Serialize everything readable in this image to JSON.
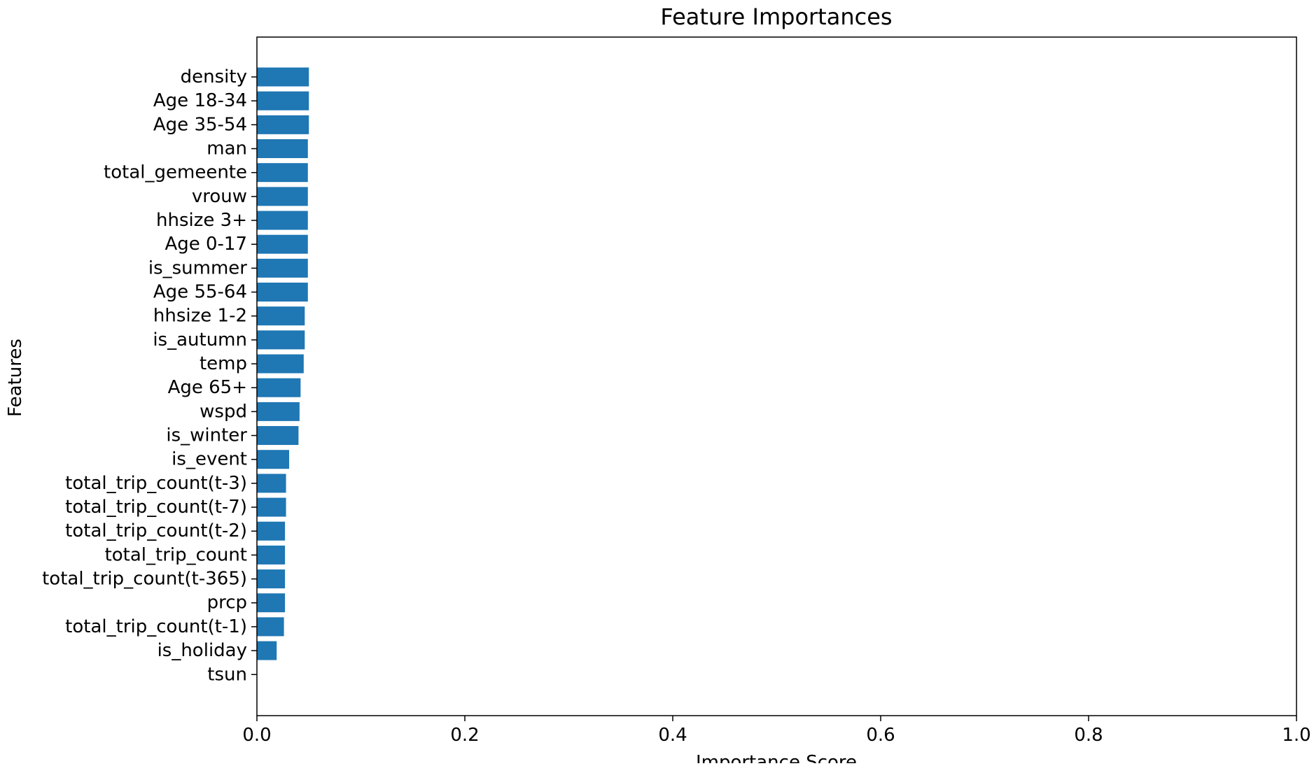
{
  "chart_data": {
    "type": "bar",
    "orientation": "horizontal",
    "title": "Feature Importances",
    "xlabel": "Importance Score",
    "ylabel": "Features",
    "xlim": [
      0.0,
      1.0
    ],
    "xticks": [
      "0.0",
      "0.2",
      "0.4",
      "0.6",
      "0.8",
      "1.0"
    ],
    "grid": false,
    "bar_color": "#1f77b4",
    "categories": [
      "density",
      "Age 18-34",
      "Age 35-54",
      "man",
      "total_gemeente",
      "vrouw",
      "hhsize 3+",
      "Age 0-17",
      "is_summer",
      "Age 55-64",
      "hhsize 1-2",
      "is_autumn",
      "temp",
      "Age 65+",
      "wspd",
      "is_winter",
      "is_event",
      "total_trip_count(t-3)",
      "total_trip_count(t-7)",
      "total_trip_count(t-2)",
      "total_trip_count",
      "total_trip_count(t-365)",
      "prcp",
      "total_trip_count(t-1)",
      "is_holiday",
      "tsun"
    ],
    "values": [
      0.05,
      0.05,
      0.05,
      0.049,
      0.049,
      0.049,
      0.049,
      0.049,
      0.049,
      0.049,
      0.046,
      0.046,
      0.045,
      0.042,
      0.041,
      0.04,
      0.031,
      0.028,
      0.028,
      0.027,
      0.027,
      0.027,
      0.027,
      0.026,
      0.019,
      0.0
    ]
  }
}
